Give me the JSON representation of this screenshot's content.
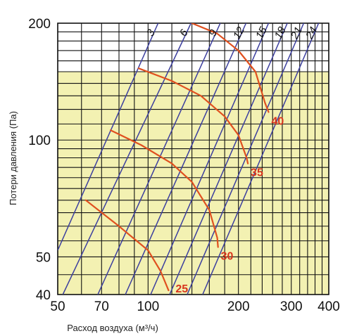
{
  "chart_data": {
    "type": "line",
    "xlabel": "Расход воздуха (м³/ч)",
    "ylabel": "Потери давления (Па)",
    "x_scale": "log",
    "y_scale": "log",
    "xlim": [
      50,
      400
    ],
    "ylim": [
      40,
      200
    ],
    "x_ticks": [
      50,
      70,
      100,
      200,
      300,
      400
    ],
    "y_ticks": [
      40,
      50,
      100,
      200
    ],
    "grid": true,
    "shaded_band_ylim": [
      40,
      150
    ],
    "colors": {
      "shade": "#f3f1b2",
      "grid": "#111111",
      "series_lines": "#3c3f9e",
      "curves": "#e0501f",
      "curve_labels": "#d8351e"
    },
    "diagonal_series": [
      {
        "label": "3",
        "points": [
          [
            50,
            52
          ],
          [
            108,
            200
          ]
        ]
      },
      {
        "label": "6",
        "points": [
          [
            52,
            40
          ],
          [
            139,
            200
          ]
        ]
      },
      {
        "label": "9",
        "points": [
          [
            68,
            40
          ],
          [
            174,
            200
          ]
        ]
      },
      {
        "label": "12",
        "points": [
          [
            84,
            40
          ],
          [
            212,
            200
          ]
        ]
      },
      {
        "label": "15",
        "points": [
          [
            102,
            40
          ],
          [
            252,
            200
          ]
        ]
      },
      {
        "label": "18",
        "points": [
          [
            118,
            40
          ],
          [
            291,
            200
          ]
        ]
      },
      {
        "label": "21",
        "points": [
          [
            135,
            40
          ],
          [
            330,
            200
          ]
        ]
      },
      {
        "label": "24",
        "points": [
          [
            152,
            40
          ],
          [
            370,
            200
          ]
        ]
      }
    ],
    "curves": [
      {
        "label": "25",
        "points": [
          [
            62,
            70
          ],
          [
            80,
            60
          ],
          [
            100,
            52
          ],
          [
            110,
            46
          ],
          [
            117,
            41
          ]
        ]
      },
      {
        "label": "30",
        "points": [
          [
            75,
            106
          ],
          [
            95,
            97
          ],
          [
            120,
            87
          ],
          [
            140,
            78
          ],
          [
            160,
            66
          ],
          [
            170,
            56
          ],
          [
            171,
            53
          ]
        ]
      },
      {
        "label": "35",
        "points": [
          [
            93,
            153
          ],
          [
            120,
            142
          ],
          [
            150,
            130
          ],
          [
            180,
            115
          ],
          [
            200,
            103
          ],
          [
            213,
            90
          ],
          [
            215,
            87
          ]
        ]
      },
      {
        "label": "40",
        "points": [
          [
            140,
            200
          ],
          [
            170,
            188
          ],
          [
            200,
            170
          ],
          [
            228,
            150
          ],
          [
            245,
            125
          ],
          [
            252,
            118
          ]
        ]
      }
    ]
  }
}
